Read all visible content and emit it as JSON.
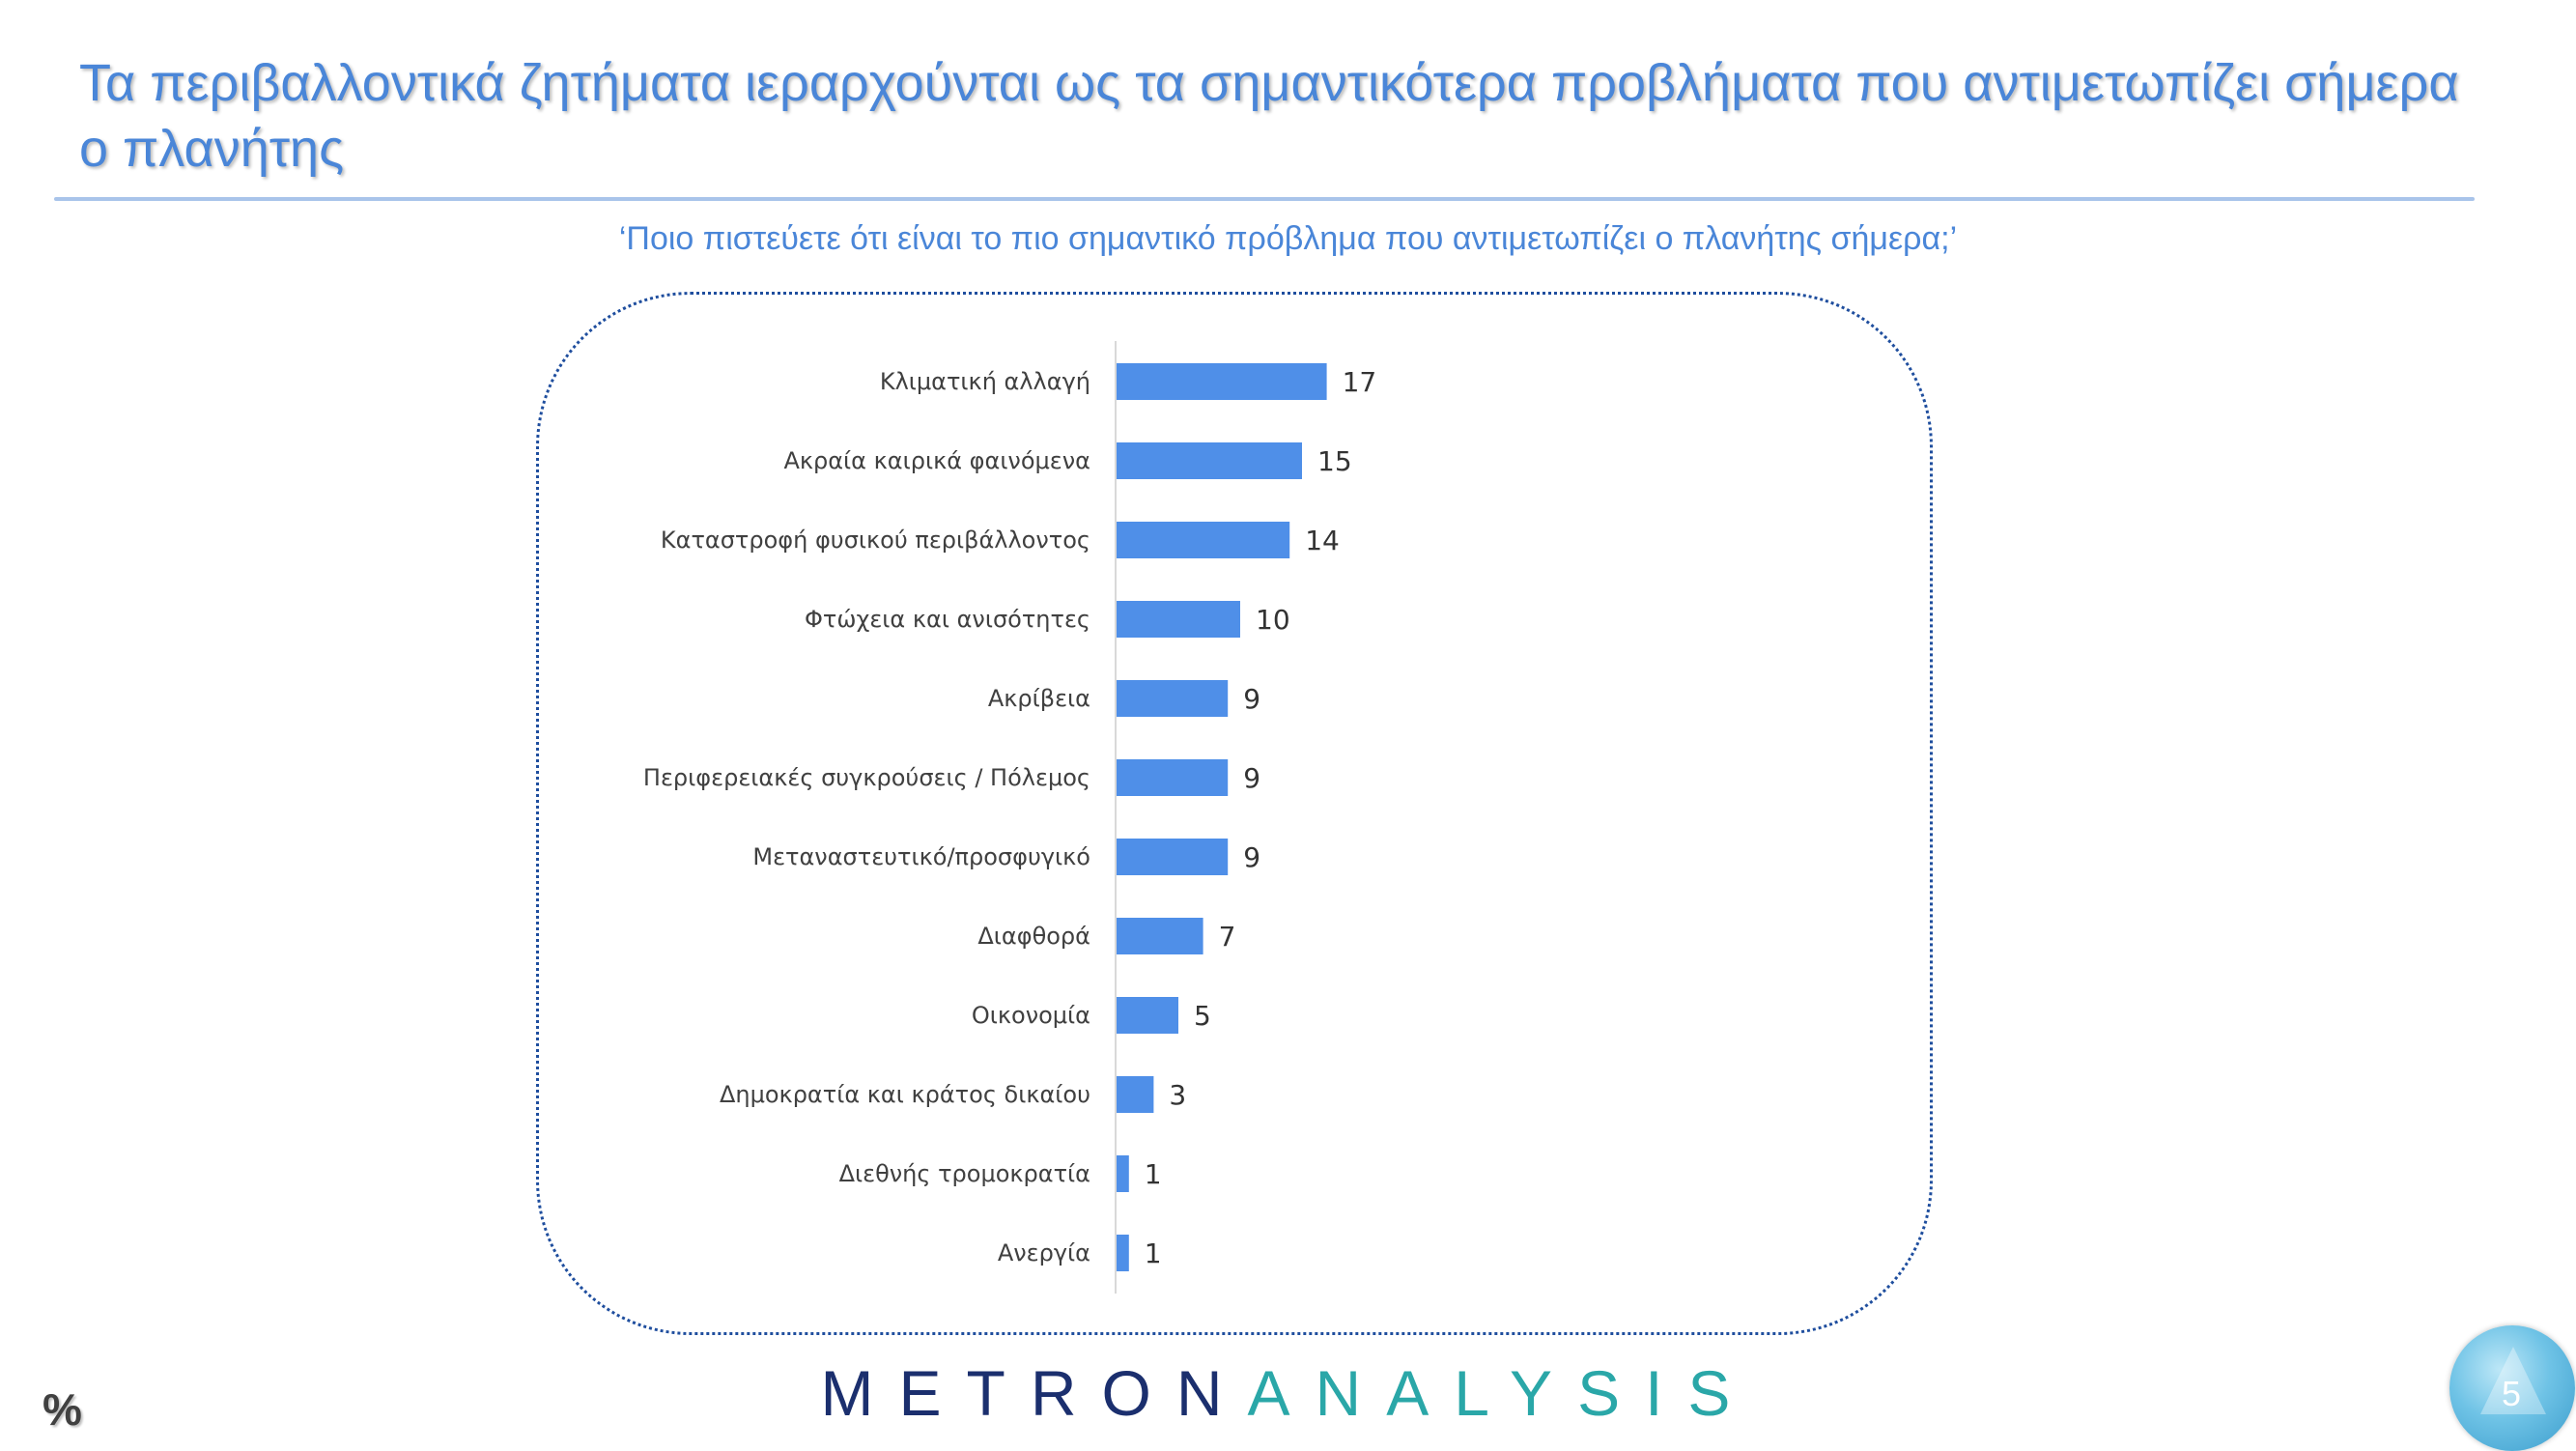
{
  "slide": {
    "title": "Τα περιβαλλοντικά ζητήματα ιεραρχούνται ως τα σημαντικότερα προβλήματα που αντιμετωπίζει σήμερα ο πλανήτης",
    "question": "‘Ποιο πιστεύετε ότι είναι το πιο σημαντικό πρόβλημα που αντιμετωπίζει ο πλανήτης σήμερα;’",
    "unit_symbol": "%",
    "page_number": "5"
  },
  "logo": {
    "part1": "METRON",
    "part2": "ANALYSIS",
    "colors": {
      "part1": "#1b2f6e",
      "part2": "#2aa7a8"
    }
  },
  "colors": {
    "title": "#4a86d8",
    "bar": "#4f8fe8",
    "frame": "#1f4e9e"
  },
  "chart_data": {
    "type": "bar",
    "orientation": "horizontal",
    "categories": [
      "Κλιματική αλλαγή",
      "Ακραία καιρικά φαινόμενα",
      "Καταστροφή φυσικού περιβάλλοντος",
      "Φτώχεια και ανισότητες",
      "Ακρίβεια",
      "Περιφερειακές συγκρούσεις / Πόλεμος",
      "Μεταναστευτικό/προσφυγικό",
      "Διαφθορά",
      "Οικονομία",
      "Δημοκρατία και κράτος δικαίου",
      "Διεθνής τρομοκρατία",
      "Ανεργία"
    ],
    "values": [
      17,
      15,
      14,
      10,
      9,
      9,
      9,
      7,
      5,
      3,
      1,
      1
    ],
    "title": "",
    "xlabel": "",
    "ylabel": "",
    "data_labels": true,
    "grid": false,
    "legend": "none"
  }
}
